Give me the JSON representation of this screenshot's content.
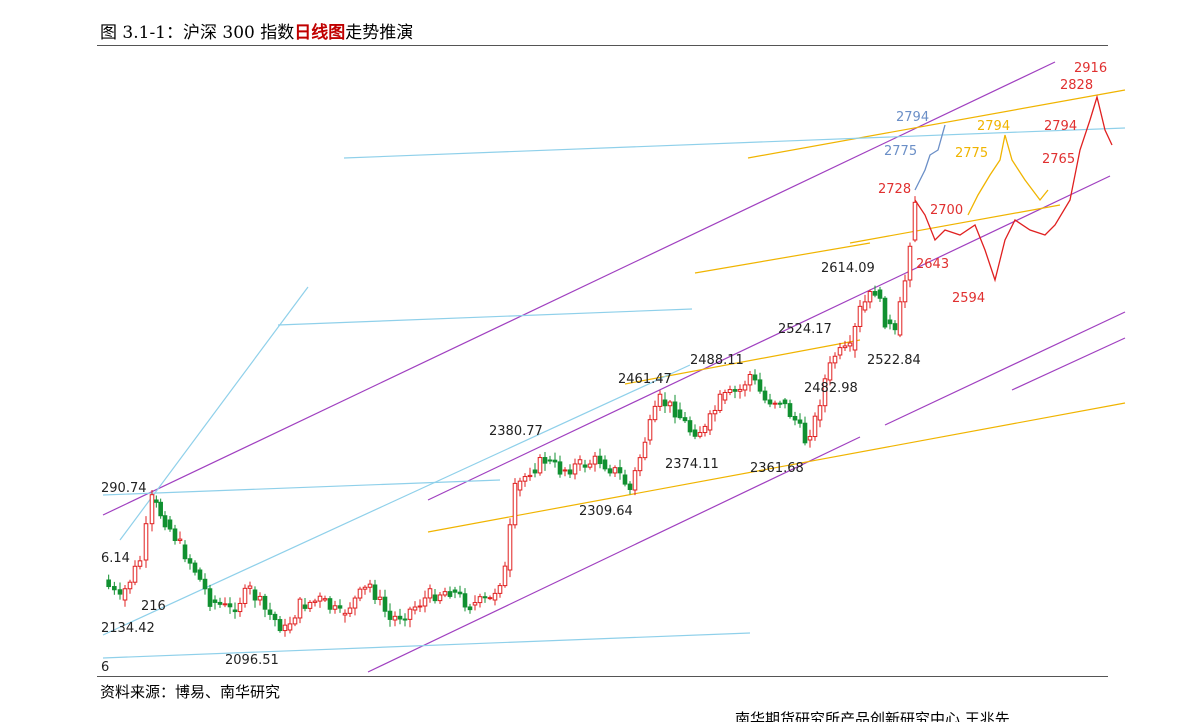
{
  "header": {
    "title_start": "图 3.1-1：沪深 300 指数",
    "title_highlight": "日线图",
    "title_end": "走势推演"
  },
  "annotations": [
    "2916",
    "2828",
    "2794",
    "2775",
    "2794",
    "2775",
    "2794",
    "2765",
    "2728",
    "2700",
    "2643",
    "2594",
    "2614.09",
    "2524.17",
    "2522.84",
    "2488.11",
    "2482.98",
    "2461.47",
    "2380.77",
    "2374.11",
    "2361.68",
    "2309.64",
    "290.74",
    "6.14",
    "216",
    "2134.42",
    "2096.51",
    "6"
  ],
  "footer": {
    "source": "资料来源：博易、南华研究",
    "organization": "南华期货研究所产品创新研究中心 王兆先"
  }
}
